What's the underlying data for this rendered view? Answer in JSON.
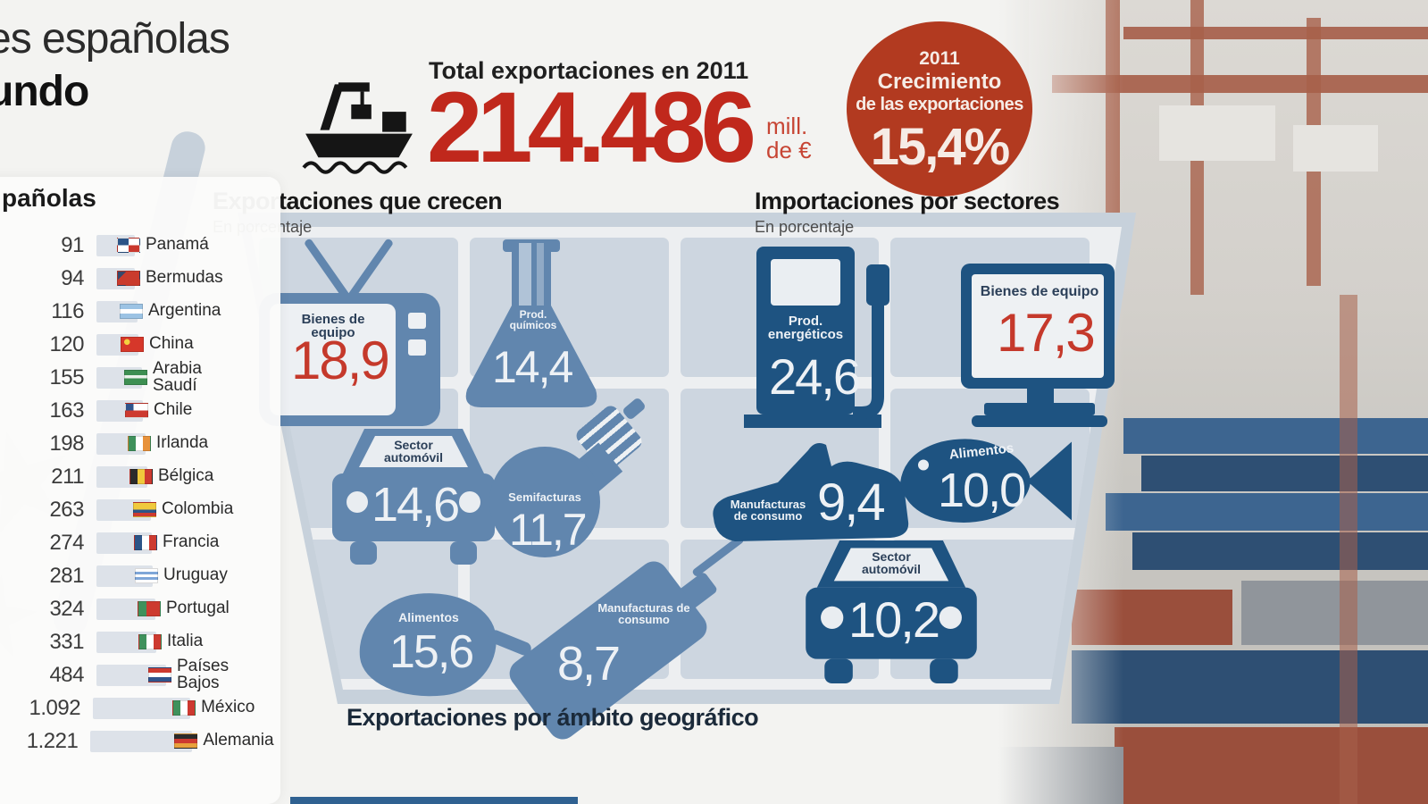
{
  "page_title": {
    "line1": "es españolas",
    "line2": "undo"
  },
  "totals": {
    "heading": "Total exportaciones en 2011",
    "value": "214.486",
    "unit_top": "mill.",
    "unit_bottom": "de €",
    "ship_icon": "cargo-ship-icon"
  },
  "growth_badge": {
    "year": "2011",
    "line1": "Crecimiento",
    "line2": "de las exportaciones",
    "value": "15,4%",
    "color": "#b23a20"
  },
  "exports_section": {
    "title": "Exportaciones que crecen",
    "subtitle": "En porcentaje",
    "items": [
      {
        "label": "Bienes de equipo",
        "value": "18,9",
        "icon": "tv-icon"
      },
      {
        "label": "Prod. químicos",
        "value": "14,4",
        "icon": "flask-icon"
      },
      {
        "label": "Sector automóvil",
        "value": "14,6",
        "icon": "car-icon"
      },
      {
        "label": "Semifacturas",
        "value": "11,7",
        "icon": "lightbulb-icon"
      },
      {
        "label": "Alimentos",
        "value": "15,6",
        "icon": "pepper-icon"
      },
      {
        "label": "Manufacturas de consumo",
        "value": "8,7",
        "icon": "spray-icon"
      }
    ]
  },
  "imports_section": {
    "title": "Importaciones por sectores",
    "subtitle": "En porcentaje",
    "items": [
      {
        "label": "Prod. energéticos",
        "value": "24,6",
        "icon": "fuel-pump-icon"
      },
      {
        "label": "Bienes de equipo",
        "value": "17,3",
        "icon": "computer-icon"
      },
      {
        "label": "Manufacturas de consumo",
        "value": "9,4",
        "icon": "sneaker-icon"
      },
      {
        "label": "Alimentos",
        "value": "10,0",
        "icon": "fish-icon"
      },
      {
        "label": "Sector automóvil",
        "value": "10,2",
        "icon": "car-icon"
      }
    ]
  },
  "geo_section": {
    "title": "Exportaciones por ámbito geográfico"
  },
  "countries_panel": {
    "partial_title": "pañolas",
    "rows": [
      {
        "value": "91",
        "country": "Panamá",
        "flag": "pa"
      },
      {
        "value": "94",
        "country": "Bermudas",
        "flag": "bm"
      },
      {
        "value": "116",
        "country": "Argentina",
        "flag": "ar"
      },
      {
        "value": "120",
        "country": "China",
        "flag": "cn"
      },
      {
        "value": "155",
        "country": "Arabia Saudí",
        "flag": "sa"
      },
      {
        "value": "163",
        "country": "Chile",
        "flag": "cl"
      },
      {
        "value": "198",
        "country": "Irlanda",
        "flag": "ie"
      },
      {
        "value": "211",
        "country": "Bélgica",
        "flag": "be"
      },
      {
        "value": "263",
        "country": "Colombia",
        "flag": "co"
      },
      {
        "value": "274",
        "country": "Francia",
        "flag": "fr"
      },
      {
        "value": "281",
        "country": "Uruguay",
        "flag": "uy"
      },
      {
        "value": "324",
        "country": "Portugal",
        "flag": "pt"
      },
      {
        "value": "331",
        "country": "Italia",
        "flag": "it"
      },
      {
        "value": "484",
        "country": "Países Bajos",
        "flag": "nl"
      },
      {
        "value": "1.092",
        "country": "México",
        "flag": "mx"
      },
      {
        "value": "1.221",
        "country": "Alemania",
        "flag": "de"
      }
    ]
  },
  "colors": {
    "accent_red": "#c0281c",
    "badge_red": "#b23a20",
    "export_blue": "#6186ae",
    "import_blue": "#1e5381",
    "cart_gray_blue": "#c7d1db"
  },
  "chart_data": [
    {
      "type": "bar",
      "title": "Exportaciones que crecen",
      "ylabel": "En porcentaje",
      "categories": [
        "Bienes de equipo",
        "Prod. químicos",
        "Sector automóvil",
        "Semifacturas",
        "Alimentos",
        "Manufacturas de consumo"
      ],
      "values": [
        18.9,
        14.4,
        14.6,
        11.7,
        15.6,
        8.7
      ]
    },
    {
      "type": "bar",
      "title": "Importaciones por sectores",
      "ylabel": "En porcentaje",
      "categories": [
        "Prod. energéticos",
        "Bienes de equipo",
        "Manufacturas de consumo",
        "Alimentos",
        "Sector automóvil"
      ],
      "values": [
        24.6,
        17.3,
        9.4,
        10.0,
        10.2
      ]
    },
    {
      "type": "bar",
      "title": "pañolas",
      "categories": [
        "Panamá",
        "Bermudas",
        "Argentina",
        "China",
        "Arabia Saudí",
        "Chile",
        "Irlanda",
        "Bélgica",
        "Colombia",
        "Francia",
        "Uruguay",
        "Portugal",
        "Italia",
        "Países Bajos",
        "México",
        "Alemania"
      ],
      "values": [
        91,
        94,
        116,
        120,
        155,
        163,
        198,
        211,
        263,
        274,
        281,
        324,
        331,
        484,
        1092,
        1221
      ]
    }
  ]
}
